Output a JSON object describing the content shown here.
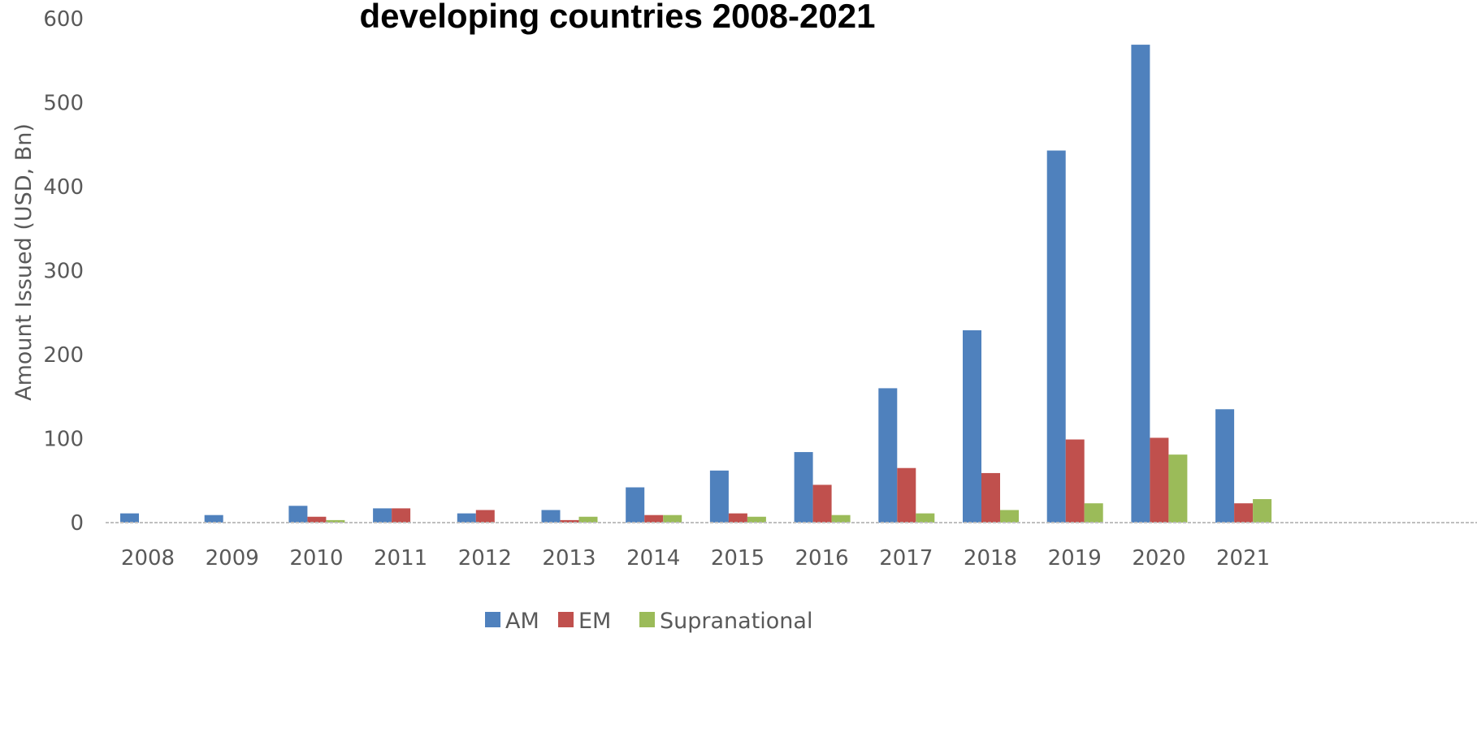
{
  "chart_data": {
    "type": "bar",
    "title": "developing countries 2008-2021",
    "ylabel": "Amount Issued (USD, Bn)",
    "xlabel": "",
    "ylim": [
      0,
      600
    ],
    "yticks": [
      0,
      100,
      200,
      300,
      400,
      500,
      600
    ],
    "categories": [
      "2008",
      "2009",
      "2010",
      "2011",
      "2012",
      "2013",
      "2014",
      "2015",
      "2016",
      "2017",
      "2018",
      "2019",
      "2020",
      "2021"
    ],
    "series": [
      {
        "name": "AM",
        "color": "#4f81bd",
        "values": [
          11,
          9,
          20,
          17,
          11,
          15,
          42,
          62,
          84,
          160,
          229,
          443,
          569,
          135
        ]
      },
      {
        "name": "EM",
        "color": "#c0504d",
        "values": [
          0,
          0,
          7,
          17,
          15,
          3,
          9,
          11,
          45,
          65,
          59,
          99,
          101,
          23
        ]
      },
      {
        "name": "Supranational",
        "color": "#9bbb59",
        "values": [
          0,
          0,
          3,
          0,
          0,
          7,
          9,
          7,
          9,
          11,
          15,
          23,
          81,
          28
        ]
      }
    ],
    "grid": false,
    "legend_position": "bottom"
  }
}
